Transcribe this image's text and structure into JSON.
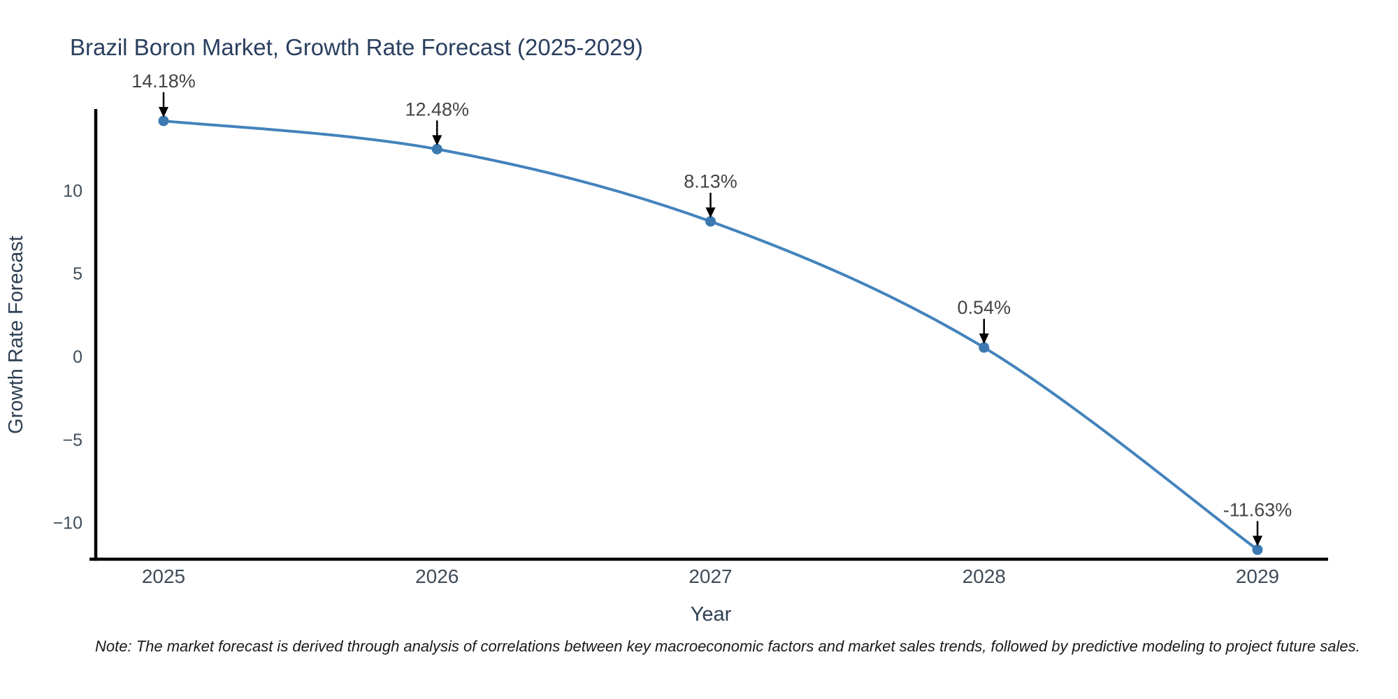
{
  "chart_data": {
    "type": "line",
    "title": "Brazil Boron Market, Growth Rate Forecast (2025-2029)",
    "xlabel": "Year",
    "ylabel": "Growth Rate Forecast",
    "x": [
      2025,
      2026,
      2027,
      2028,
      2029
    ],
    "series": [
      {
        "name": "Growth Rate Forecast",
        "values": [
          14.18,
          12.48,
          8.13,
          0.54,
          -11.63
        ],
        "point_labels": [
          "14.18%",
          "12.48%",
          "8.13%",
          "0.54%",
          "-11.63%"
        ]
      }
    ],
    "xticks": [
      "2025",
      "2026",
      "2027",
      "2028",
      "2029"
    ],
    "yticks": [
      10,
      5,
      0,
      -5,
      -10
    ],
    "ytick_labels": [
      "10",
      "5",
      "0",
      "−5",
      "−10"
    ],
    "xlim": [
      2024.73,
      2029.26
    ],
    "ylim": [
      -12.2,
      14.8
    ],
    "grid": false,
    "legend_position": "none",
    "line_shape": "spline",
    "colors": {
      "line": "#4383bc",
      "marker": "#3b79b0",
      "axis_line": "#000000",
      "arrow": "#000000",
      "title": "#2a3f5f",
      "axis_title": "#2e4053",
      "tick_label": "#3f4c59",
      "annotation": "#444444",
      "background": "#ffffff"
    }
  },
  "note": {
    "text": "Note: The market forecast is derived through analysis of correlations between key macroeconomic factors and market sales trends, followed by predictive modeling to project future sales."
  }
}
